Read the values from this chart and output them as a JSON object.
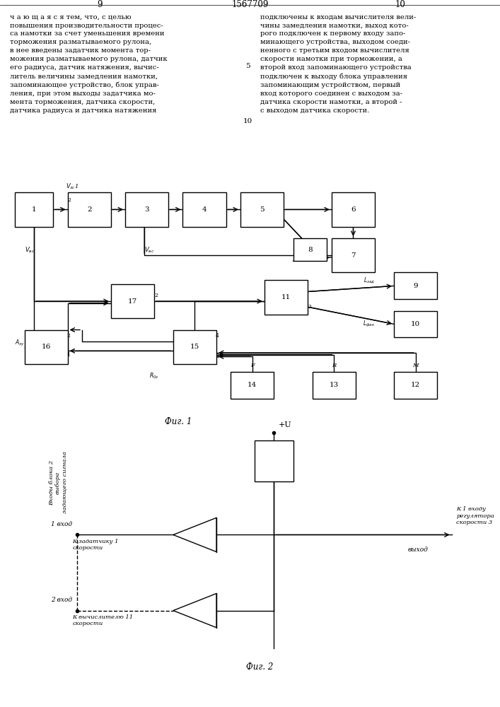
{
  "background": "#ffffff",
  "line_color": "#000000",
  "box_color": "#ffffff",
  "box_edge": "#000000",
  "page_left": "9",
  "page_center": "1567709",
  "page_right": "10",
  "left_text": "ч а ю щ а я с я тем, что, с целью\nповышения производительности процес-\nса намотки за счет уменьшения времени\nторможения разматываемого рулона,\nв нее введены задатчик момента тор-\nможения разматываемого рулона, датчик\nего радиуса, датчик натяжения, вычис-\nлитель величины замедления намотки,\nзапоминающее устройство, блок управ-\nления, при этом выходы задатчика мо-\nмента торможения, датчика скорости,\nдатчика радиуса и датчика натяжения",
  "right_text": "подключены к входам вычислителя вели-\nчины замедления намотки, выход кото-\nрого подключен к первому входу запо-\nминающего устройства, выходом соеди-\nненного с третьим входом вычислителя\nскорости намотки при торможении, а\nвторой вход запоминающего устройства\nподключен к выходу блока управления\nзапоминающим устройством, первый\nвход которого соединен с выходом за-\nдатчика скорости намотки, а второй -\nс выходом датчика скорости.",
  "line_num_5": "5",
  "line_num_10": "10"
}
